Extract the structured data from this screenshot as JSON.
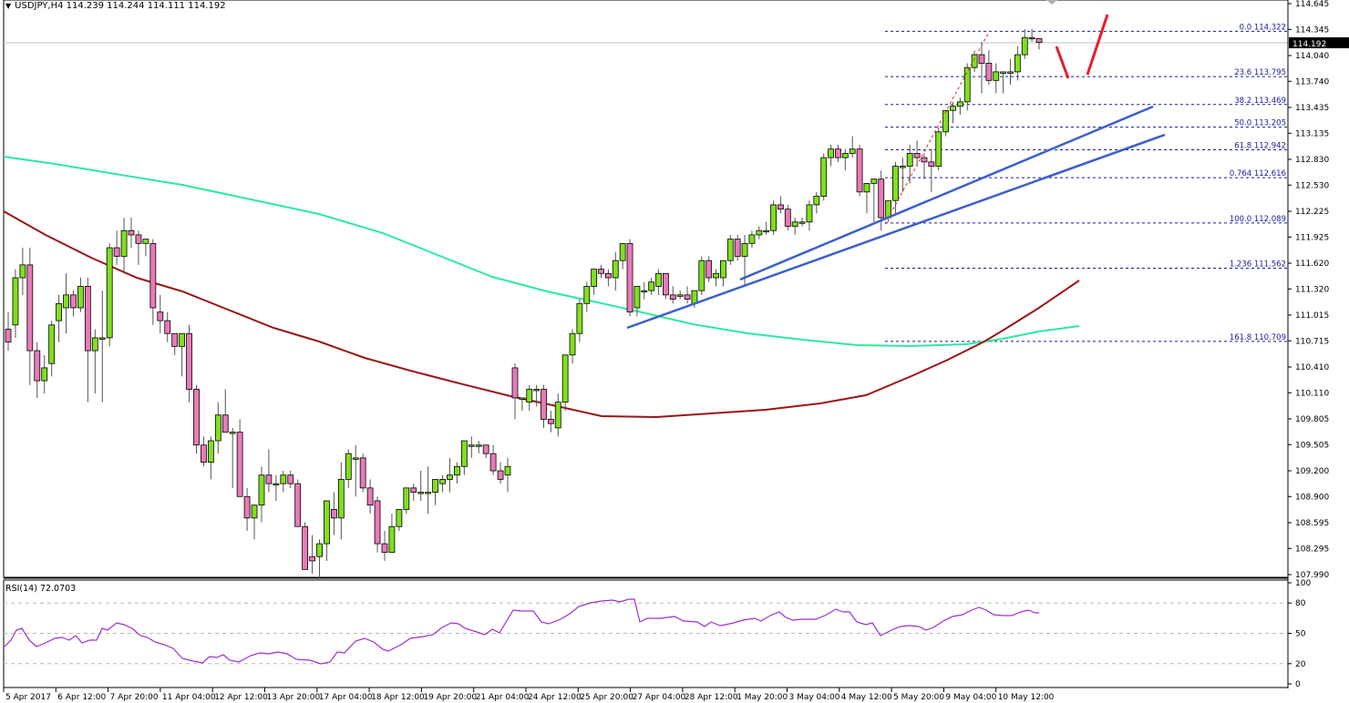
{
  "header": {
    "symbol": "USDJPY,H4",
    "ohlc": "114.239 114.244 114.111 114.192",
    "title_full": "USDJPY,H4  114.239 114.244 114.111 114.192"
  },
  "price_axis": {
    "ticks": [
      "114.645",
      "114.345",
      "114.040",
      "113.740",
      "113.435",
      "113.135",
      "112.830",
      "112.530",
      "112.225",
      "111.925",
      "111.620",
      "111.320",
      "111.015",
      "110.715",
      "110.410",
      "110.110",
      "109.805",
      "109.505",
      "109.200",
      "108.900",
      "108.595",
      "108.295",
      "107.990"
    ],
    "current_price": "114.192"
  },
  "rsi": {
    "title": "RSI(14) 72.0703",
    "levels": [
      "100",
      "80",
      "50",
      "20",
      "0"
    ]
  },
  "time_axis": {
    "labels": [
      "5 Apr 2017",
      "6 Apr 12:00",
      "7 Apr 20:00",
      "11 Apr 04:00",
      "12 Apr 12:00",
      "13 Apr 20:00",
      "17 Apr 04:00",
      "18 Apr 12:00",
      "19 Apr 20:00",
      "21 Apr 04:00",
      "24 Apr 12:00",
      "25 Apr 20:00",
      "27 Apr 04:00",
      "28 Apr 12:00",
      "1 May 20:00",
      "3 May 04:00",
      "4 May 12:00",
      "5 May 20:00",
      "9 May 04:00",
      "10 May 12:00"
    ]
  },
  "fibonacci": [
    {
      "label": "0.0 114.322",
      "price": 114.322
    },
    {
      "label": "23.6 113.795",
      "price": 113.795
    },
    {
      "label": "38.2 113.469",
      "price": 113.469
    },
    {
      "label": "50.0 113.205",
      "price": 113.205
    },
    {
      "label": "61.8 112.942",
      "price": 112.942
    },
    {
      "label": "0.764 112.616",
      "price": 112.616
    },
    {
      "label": "100.0 112.089",
      "price": 112.089
    },
    {
      "label": "1.236 111.562",
      "price": 111.562
    },
    {
      "label": "161.8 110.709",
      "price": 110.709
    }
  ],
  "colors": {
    "bull": "#7fe01f",
    "bear": "#e87ab8",
    "ma_fast": "#2ee8a0",
    "ma_slow": "#9b1515",
    "trendline": "#3a5fcd",
    "fib": "#1a1aa0",
    "rsi": "#9b30d0",
    "annotation": "#e0202a"
  },
  "chart_data": {
    "type": "candlestick",
    "title": "USDJPY,H4",
    "ylim": [
      107.99,
      114.645
    ],
    "indicators": [
      "MA (green)",
      "MA (dark red)",
      "RSI(14)"
    ],
    "last_ohlc": {
      "open": 114.239,
      "high": 114.244,
      "low": 114.111,
      "close": 114.192
    },
    "rsi_last": 72.0703,
    "candles": [
      [
        110.85,
        111.05,
        110.6,
        110.7
      ],
      [
        110.9,
        111.55,
        110.75,
        111.45
      ],
      [
        111.45,
        111.8,
        111.25,
        111.6
      ],
      [
        111.6,
        111.8,
        110.2,
        110.6
      ],
      [
        110.6,
        110.7,
        110.05,
        110.25
      ],
      [
        110.25,
        110.55,
        110.1,
        110.4
      ],
      [
        110.45,
        110.95,
        110.3,
        110.9
      ],
      [
        110.95,
        111.25,
        110.7,
        111.15
      ],
      [
        111.1,
        111.5,
        110.8,
        111.25
      ],
      [
        111.25,
        111.3,
        111.0,
        111.1
      ],
      [
        111.1,
        111.45,
        111.05,
        111.35
      ],
      [
        111.35,
        111.45,
        110.0,
        110.6
      ],
      [
        110.6,
        110.85,
        110.1,
        110.75
      ],
      [
        110.75,
        111.3,
        110.0,
        110.75
      ],
      [
        110.75,
        111.85,
        110.65,
        111.8
      ],
      [
        111.8,
        112.0,
        111.6,
        111.7
      ],
      [
        111.7,
        112.15,
        111.5,
        112.0
      ],
      [
        112.0,
        112.15,
        111.8,
        111.95
      ],
      [
        111.95,
        112.0,
        111.6,
        111.85
      ],
      [
        111.85,
        111.9,
        111.7,
        111.9
      ],
      [
        111.85,
        111.9,
        110.9,
        111.1
      ],
      [
        111.05,
        111.25,
        110.8,
        110.95
      ],
      [
        110.95,
        111.05,
        110.7,
        110.8
      ],
      [
        110.8,
        110.8,
        110.55,
        110.65
      ],
      [
        110.65,
        110.8,
        110.3,
        110.8
      ],
      [
        110.8,
        110.9,
        110.0,
        110.15
      ],
      [
        110.15,
        110.2,
        109.4,
        109.5
      ],
      [
        109.5,
        109.6,
        109.25,
        109.3
      ],
      [
        109.3,
        109.6,
        109.1,
        109.55
      ],
      [
        109.55,
        110.0,
        109.4,
        109.85
      ],
      [
        109.85,
        110.15,
        109.7,
        109.65
      ],
      [
        109.65,
        109.7,
        109.0,
        109.65
      ],
      [
        109.65,
        109.8,
        108.9,
        108.9
      ],
      [
        108.9,
        109.0,
        108.5,
        108.65
      ],
      [
        108.65,
        108.8,
        108.4,
        108.8
      ],
      [
        108.8,
        109.25,
        108.6,
        109.15
      ],
      [
        109.15,
        109.45,
        108.95,
        109.05
      ],
      [
        109.05,
        109.15,
        108.85,
        109.05
      ],
      [
        109.05,
        109.2,
        108.95,
        109.15
      ],
      [
        109.15,
        109.2,
        109.0,
        109.05
      ],
      [
        109.05,
        109.1,
        108.55,
        108.55
      ],
      [
        108.55,
        108.6,
        108.1,
        108.05
      ],
      [
        108.2,
        108.45,
        108.0,
        108.15
      ],
      [
        108.2,
        108.4,
        107.95,
        108.35
      ],
      [
        108.35,
        108.85,
        108.15,
        108.85
      ],
      [
        108.75,
        108.95,
        108.45,
        108.65
      ],
      [
        108.65,
        109.3,
        108.4,
        109.1
      ],
      [
        109.1,
        109.45,
        109.0,
        109.4
      ],
      [
        109.35,
        109.5,
        108.9,
        109.35
      ],
      [
        109.35,
        109.4,
        108.95,
        109.0
      ],
      [
        109.0,
        109.1,
        108.7,
        108.8
      ],
      [
        108.85,
        108.9,
        108.25,
        108.35
      ],
      [
        108.35,
        108.5,
        108.15,
        108.25
      ],
      [
        108.25,
        108.7,
        108.3,
        108.55
      ],
      [
        108.55,
        108.75,
        108.5,
        108.75
      ],
      [
        108.75,
        109.0,
        108.7,
        109.0
      ],
      [
        109.0,
        109.05,
        108.85,
        108.95
      ],
      [
        108.95,
        109.2,
        108.85,
        108.95
      ],
      [
        108.95,
        109.25,
        108.7,
        108.95
      ],
      [
        108.95,
        109.1,
        108.8,
        109.1
      ],
      [
        109.05,
        109.15,
        108.95,
        109.1
      ],
      [
        109.1,
        109.35,
        108.95,
        109.15
      ],
      [
        109.15,
        109.3,
        109.05,
        109.25
      ],
      [
        109.25,
        109.55,
        109.15,
        109.55
      ],
      [
        109.5,
        109.6,
        109.35,
        109.5
      ],
      [
        109.5,
        109.55,
        109.4,
        109.5
      ],
      [
        109.5,
        109.5,
        109.35,
        109.4
      ],
      [
        109.4,
        109.5,
        109.15,
        109.2
      ],
      [
        109.2,
        109.3,
        109.05,
        109.1
      ],
      [
        109.15,
        109.35,
        108.95,
        109.25
      ],
      [
        110.4,
        110.45,
        109.8,
        110.05
      ],
      [
        110.05,
        110.05,
        109.9,
        110.05
      ],
      [
        110.0,
        110.2,
        109.9,
        110.15
      ],
      [
        110.15,
        110.2,
        109.95,
        110.15
      ],
      [
        110.15,
        110.2,
        109.7,
        109.8
      ],
      [
        109.8,
        109.9,
        109.65,
        109.75
      ],
      [
        109.7,
        110.1,
        109.6,
        110.0
      ],
      [
        110.0,
        110.55,
        109.9,
        110.55
      ],
      [
        110.55,
        110.85,
        110.45,
        110.8
      ],
      [
        110.8,
        111.2,
        110.7,
        111.15
      ],
      [
        111.15,
        111.4,
        111.05,
        111.35
      ],
      [
        111.35,
        111.55,
        111.25,
        111.55
      ],
      [
        111.55,
        111.6,
        111.45,
        111.5
      ],
      [
        111.5,
        111.55,
        111.35,
        111.45
      ],
      [
        111.45,
        111.75,
        111.3,
        111.65
      ],
      [
        111.65,
        111.85,
        111.55,
        111.85
      ],
      [
        111.85,
        111.9,
        111.0,
        111.05
      ],
      [
        111.1,
        111.35,
        111.0,
        111.35
      ],
      [
        111.3,
        111.4,
        111.2,
        111.3
      ],
      [
        111.3,
        111.45,
        111.25,
        111.4
      ],
      [
        111.35,
        111.55,
        111.25,
        111.5
      ],
      [
        111.5,
        111.5,
        111.2,
        111.25
      ],
      [
        111.25,
        111.35,
        111.15,
        111.2
      ],
      [
        111.25,
        111.3,
        111.2,
        111.25
      ],
      [
        111.25,
        111.35,
        111.15,
        111.2
      ],
      [
        111.15,
        111.3,
        111.1,
        111.3
      ],
      [
        111.3,
        111.7,
        111.25,
        111.65
      ],
      [
        111.65,
        111.7,
        111.4,
        111.45
      ],
      [
        111.45,
        111.55,
        111.35,
        111.5
      ],
      [
        111.45,
        111.65,
        111.35,
        111.65
      ],
      [
        111.65,
        111.95,
        111.6,
        111.9
      ],
      [
        111.9,
        111.95,
        111.65,
        111.7
      ],
      [
        111.7,
        111.95,
        111.35,
        111.85
      ],
      [
        111.85,
        112.0,
        111.8,
        111.95
      ],
      [
        111.95,
        112.05,
        111.9,
        112.0
      ],
      [
        112.0,
        112.1,
        111.95,
        112.0
      ],
      [
        112.0,
        112.35,
        111.95,
        112.3
      ],
      [
        112.3,
        112.4,
        112.2,
        112.25
      ],
      [
        112.25,
        112.3,
        112.0,
        112.05
      ],
      [
        112.05,
        112.15,
        111.95,
        112.1
      ],
      [
        112.1,
        112.15,
        112.05,
        112.1
      ],
      [
        112.1,
        112.35,
        112.0,
        112.3
      ],
      [
        112.3,
        112.45,
        112.2,
        112.4
      ],
      [
        112.4,
        112.9,
        112.35,
        112.85
      ],
      [
        112.85,
        113.0,
        112.75,
        112.95
      ],
      [
        112.95,
        113.0,
        112.8,
        112.85
      ],
      [
        112.85,
        112.95,
        112.7,
        112.9
      ],
      [
        112.9,
        113.1,
        112.85,
        112.95
      ],
      [
        112.95,
        113.0,
        112.4,
        112.45
      ],
      [
        112.45,
        112.55,
        112.2,
        112.55
      ],
      [
        112.55,
        112.6,
        112.1,
        112.6
      ],
      [
        112.6,
        112.7,
        112.0,
        112.15
      ],
      [
        112.15,
        112.35,
        112.1,
        112.35
      ],
      [
        112.35,
        112.8,
        112.2,
        112.75
      ],
      [
        112.75,
        112.85,
        112.45,
        112.75
      ],
      [
        112.75,
        113.0,
        112.55,
        112.9
      ],
      [
        112.9,
        113.05,
        112.75,
        112.85
      ],
      [
        112.85,
        112.9,
        112.6,
        112.8
      ],
      [
        112.8,
        112.95,
        112.45,
        112.75
      ],
      [
        112.75,
        113.2,
        112.7,
        113.15
      ],
      [
        113.15,
        113.4,
        113.1,
        113.4
      ],
      [
        113.4,
        113.5,
        113.25,
        113.45
      ],
      [
        113.45,
        113.55,
        113.35,
        113.5
      ],
      [
        113.5,
        113.95,
        113.4,
        113.9
      ],
      [
        113.9,
        114.1,
        113.85,
        114.05
      ],
      [
        114.05,
        114.2,
        113.6,
        113.95
      ],
      [
        113.95,
        114.1,
        113.7,
        113.75
      ],
      [
        113.75,
        113.95,
        113.6,
        113.85
      ],
      [
        113.85,
        113.85,
        113.6,
        113.85
      ],
      [
        113.85,
        114.0,
        113.7,
        113.85
      ],
      [
        113.85,
        114.15,
        113.75,
        114.05
      ],
      [
        114.05,
        114.35,
        114.0,
        114.25
      ],
      [
        114.25,
        114.35,
        114.2,
        114.24
      ],
      [
        114.239,
        114.244,
        114.111,
        114.192
      ]
    ],
    "fib_levels": [
      114.322,
      113.795,
      113.469,
      113.205,
      112.942,
      112.616,
      112.089,
      111.562,
      110.709
    ]
  }
}
